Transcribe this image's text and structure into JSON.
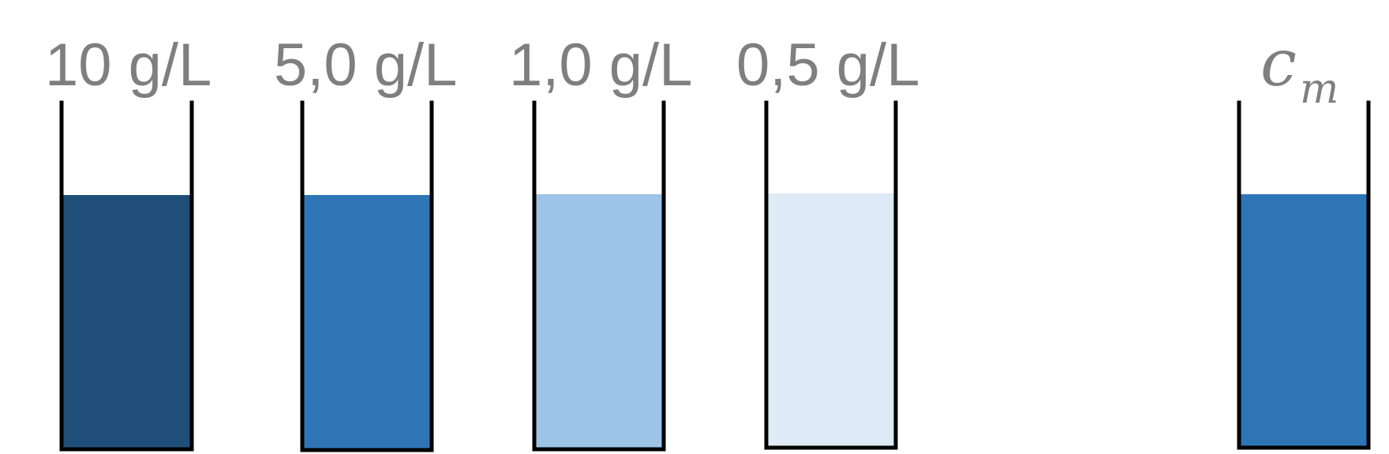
{
  "beakers": [
    {
      "label": "10 g/L",
      "liquid_color": "#1f4e79"
    },
    {
      "label": "5,0 g/L",
      "liquid_color": "#2e75b6"
    },
    {
      "label": "1,0 g/L",
      "liquid_color": "#9dc3e6"
    },
    {
      "label": "0,5 g/L",
      "liquid_color": "#deebf7"
    }
  ],
  "unknown": {
    "symbol": "c",
    "subscript": "m",
    "liquid_color": "#2e75b6"
  },
  "colors": {
    "label_text": "#7f7f7f",
    "beaker_outline": "#000000",
    "background": "#ffffff"
  }
}
